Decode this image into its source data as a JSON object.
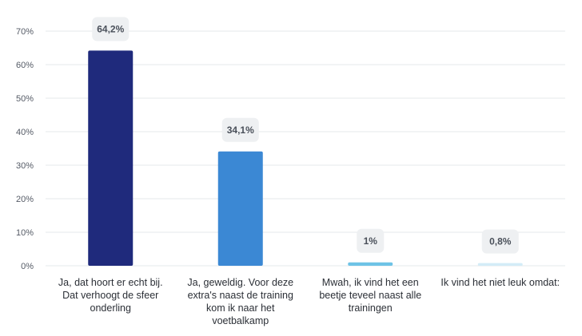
{
  "chart_data": {
    "type": "bar",
    "categories": [
      [
        "Ja, dat hoort er echt bij.",
        "Dat verhoogt de sfeer",
        "onderling"
      ],
      [
        "Ja, geweldig. Voor deze",
        "extra's naast de training",
        "kom ik naar het",
        "voetbalkamp"
      ],
      [
        "Mwah, ik vind het een",
        "beetje teveel naast alle",
        "trainingen"
      ],
      [
        "Ik vind het niet leuk omdat:"
      ]
    ],
    "values": [
      64.2,
      34.1,
      1,
      0.8
    ],
    "data_labels": [
      "64,2%",
      "34,1%",
      "1%",
      "0,8%"
    ],
    "colors": [
      "#1f2a7c",
      "#3b88d4",
      "#6ec3e6",
      "#d3ecf7"
    ],
    "yticks": [
      0,
      10,
      20,
      30,
      40,
      50,
      60,
      70
    ],
    "ytick_labels": [
      "0%",
      "10%",
      "20%",
      "30%",
      "40%",
      "50%",
      "60%",
      "70%"
    ],
    "ylim": [
      0,
      70
    ],
    "grid": true
  }
}
